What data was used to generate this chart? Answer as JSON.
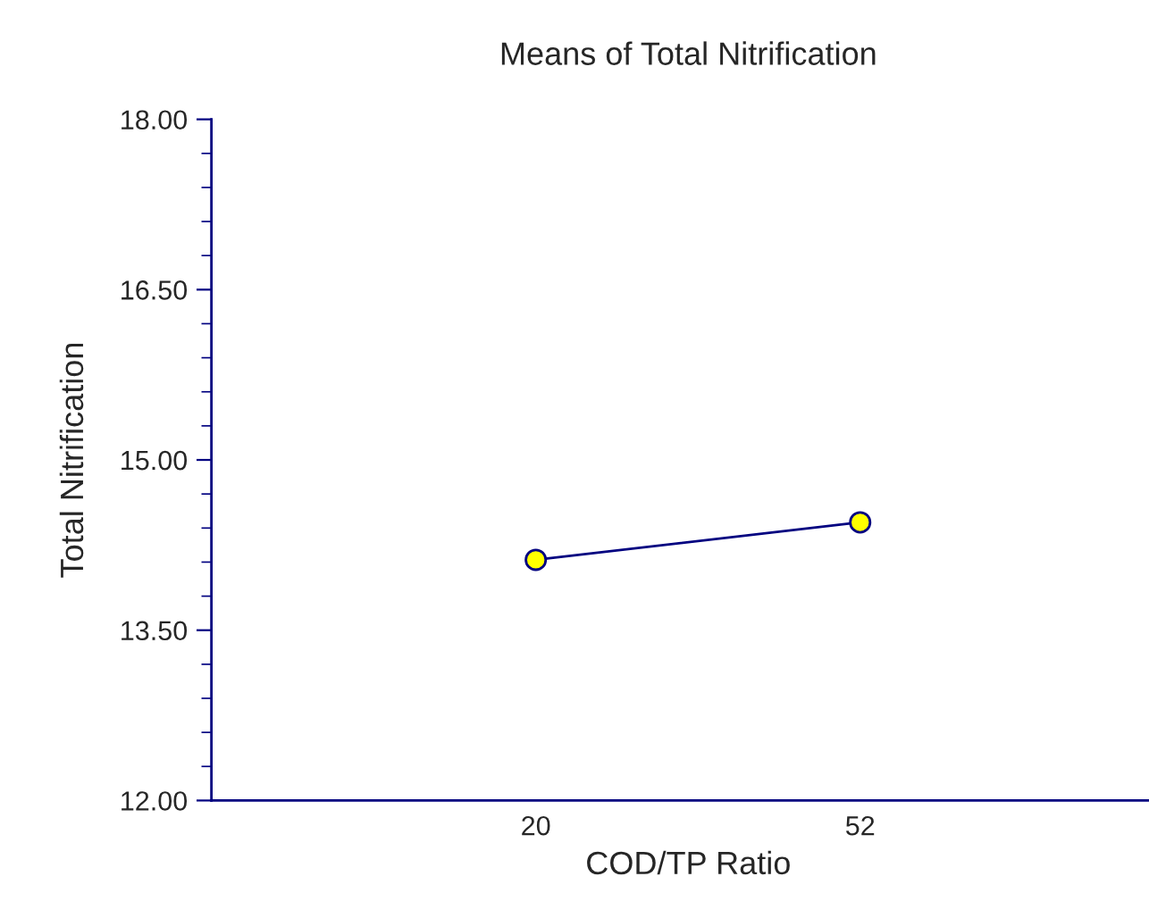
{
  "chart_data": {
    "type": "line",
    "title": "Means of Total Nitrification",
    "xlabel": "COD/TP Ratio",
    "ylabel": "Total Nitrification",
    "categories": [
      "20",
      "52"
    ],
    "series": [
      {
        "color": "#000080",
        "values": [
          14.12,
          14.45
        ]
      }
    ],
    "marker": "circle",
    "line_style": "solid",
    "grid": false,
    "ylim": [
      12,
      18
    ],
    "yticks": [
      {
        "value": 12,
        "label": "12.00"
      },
      {
        "value": 12.3,
        "label": null
      },
      {
        "value": 12.6,
        "label": null
      },
      {
        "value": 12.9,
        "label": null
      },
      {
        "value": 13.2,
        "label": null
      },
      {
        "value": 13.5,
        "label": "13.50"
      },
      {
        "value": 13.8,
        "label": null
      },
      {
        "value": 14.1,
        "label": null
      },
      {
        "value": 14.4,
        "label": null
      },
      {
        "value": 14.7,
        "label": null
      },
      {
        "value": 15,
        "label": "15.00"
      },
      {
        "value": 15.3,
        "label": null
      },
      {
        "value": 15.6,
        "label": null
      },
      {
        "value": 15.9,
        "label": null
      },
      {
        "value": 16.2,
        "label": null
      },
      {
        "value": 16.5,
        "label": "16.50"
      },
      {
        "value": 16.8,
        "label": null
      },
      {
        "value": 17.1,
        "label": null
      },
      {
        "value": 17.4,
        "label": null
      },
      {
        "value": 17.7,
        "label": null
      },
      {
        "value": 18,
        "label": "18.00"
      }
    ]
  }
}
